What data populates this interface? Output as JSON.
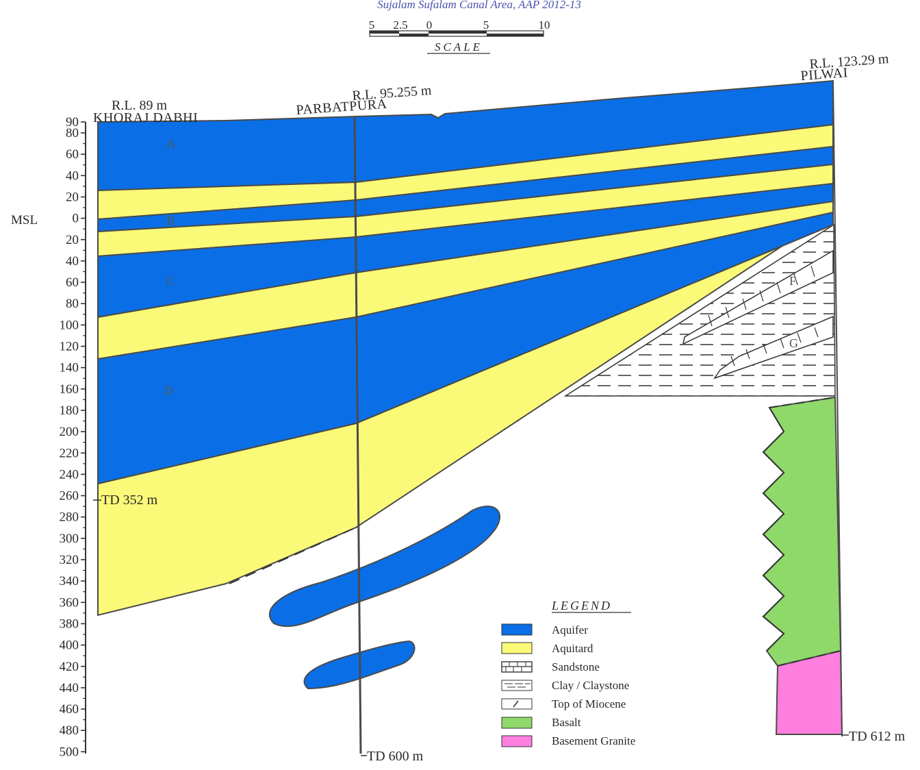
{
  "header_text": "Sujalam Sufalam Canal Area, AAP 2012-13",
  "scale": {
    "ticks": [
      "5",
      "2.5",
      "0",
      "5",
      "10"
    ],
    "label": "SCALE"
  },
  "wells": [
    {
      "rl": "R.L. 89 m",
      "name": "KHORAJ DABHI",
      "td": "TD 352 m"
    },
    {
      "rl": "R.L. 95.255 m",
      "name": "PARBATPURA",
      "td": "TD 600 m"
    },
    {
      "rl": "R.L. 123.29 m",
      "name": "PILWAI",
      "td": "TD 612 m"
    }
  ],
  "msl_label": "MSL",
  "depth_ticks": [
    "90",
    "80",
    "60",
    "40",
    "20",
    "0",
    "20",
    "40",
    "60",
    "80",
    "100",
    "120",
    "140",
    "160",
    "180",
    "200",
    "220",
    "240",
    "260",
    "280",
    "300",
    "320",
    "340",
    "360",
    "380",
    "400",
    "420",
    "440",
    "460",
    "480",
    "500"
  ],
  "units": [
    "A",
    "B",
    "C",
    "D",
    "F",
    "G"
  ],
  "legend": {
    "title": "LEGEND",
    "items": [
      {
        "label": "Aquifer",
        "color": "#0a6fe6"
      },
      {
        "label": "Aquitard",
        "color": "#fafa78"
      },
      {
        "label": "Sandstone",
        "color": "#ffffff"
      },
      {
        "label": "Clay / Claystone",
        "color": "#ffffff"
      },
      {
        "label": "Top of Miocene",
        "color": "#ffffff"
      },
      {
        "label": "Basalt",
        "color": "#8fd86a"
      },
      {
        "label": "Basement Granite",
        "color": "#ff7fdf"
      }
    ]
  },
  "colors": {
    "aquifer": "#0a6fe6",
    "aquitard": "#fafa78",
    "basalt": "#8fd86a",
    "granite": "#ff7fdf",
    "outline": "#4a4a4a"
  }
}
